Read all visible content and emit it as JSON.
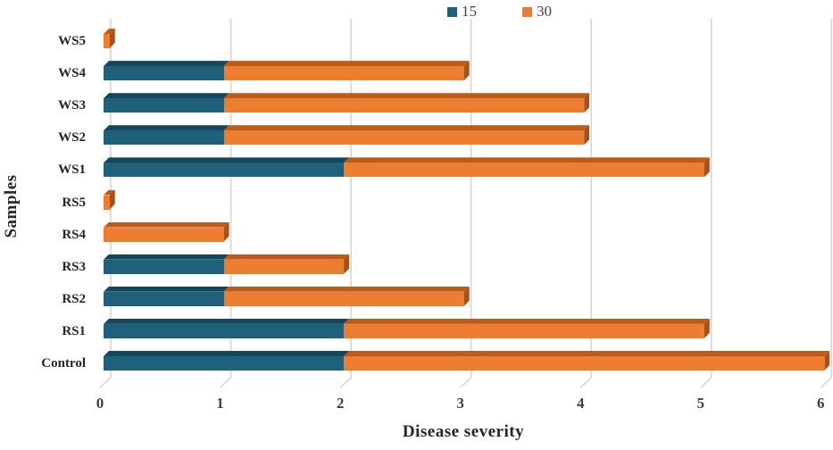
{
  "chart_data": {
    "type": "bar",
    "orientation": "horizontal-stacked",
    "style": "3d-bevel",
    "title": "",
    "xlabel": "Disease severity",
    "ylabel": "Samples",
    "xlim": [
      0,
      6
    ],
    "xticks": [
      0,
      1,
      2,
      3,
      4,
      5,
      6
    ],
    "grid": "vertical-gridlines",
    "legend_position": "top-center",
    "categories": [
      "WS5",
      "WS4",
      "WS3",
      "WS2",
      "WS1",
      "RS5",
      "RS4",
      "RS3",
      "RS2",
      "RS1",
      "Control"
    ],
    "series": [
      {
        "name": "15",
        "color": "#1F607A",
        "top_color": "#15475C",
        "values": [
          0,
          1,
          1,
          1,
          2,
          0,
          0,
          1,
          1,
          2,
          2
        ]
      },
      {
        "name": "30",
        "color": "#EC7D31",
        "top_color": "#BE5B16",
        "cap_color": "#A4521A",
        "values": [
          0.05,
          2,
          3,
          3,
          3,
          0.05,
          1,
          1,
          2,
          3,
          4
        ]
      }
    ],
    "totals": [
      0.05,
      3,
      4,
      4,
      5,
      0.05,
      1,
      2,
      3,
      5,
      6
    ],
    "gridline_color": "#D9D9D9",
    "text_color": "#262626"
  }
}
